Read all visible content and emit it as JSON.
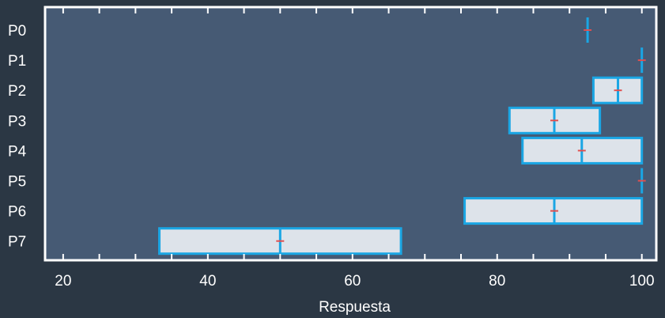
{
  "chart_data": {
    "type": "box",
    "orientation": "horizontal",
    "title": "",
    "xlabel": "Respuesta",
    "ylabel": "",
    "xlim": [
      17.5,
      102
    ],
    "x_ticks": [
      20,
      40,
      60,
      80,
      100
    ],
    "x_minor_ticks": [
      20,
      25,
      30,
      35,
      40,
      45,
      50,
      55,
      60,
      65,
      70,
      75,
      80,
      85,
      90,
      95,
      100
    ],
    "grid": false,
    "categories": [
      "P0",
      "P1",
      "P2",
      "P3",
      "P4",
      "P5",
      "P6",
      "P7"
    ],
    "boxes": [
      {
        "label": "P0",
        "q1": 92.5,
        "median": 92.5,
        "q3": 92.5,
        "mean": 92.5
      },
      {
        "label": "P1",
        "q1": 100,
        "median": 100,
        "q3": 100,
        "mean": 100
      },
      {
        "label": "P2",
        "q1": 93.3,
        "median": 96.7,
        "q3": 100,
        "mean": 96.7
      },
      {
        "label": "P3",
        "q1": 81.7,
        "median": 87.9,
        "q3": 94.2,
        "mean": 87.9
      },
      {
        "label": "P4",
        "q1": 83.5,
        "median": 91.7,
        "q3": 100,
        "mean": 91.7
      },
      {
        "label": "P5",
        "q1": 100,
        "median": 100,
        "q3": 100,
        "mean": 100
      },
      {
        "label": "P6",
        "q1": 75.5,
        "median": 87.9,
        "q3": 100,
        "mean": 87.9
      },
      {
        "label": "P7",
        "q1": 33.3,
        "median": 50,
        "q3": 66.7,
        "mean": 50
      }
    ],
    "colors": {
      "background": "#2b3744",
      "plot_area": "#465a74",
      "axis_frame": "#ffffff",
      "box_fill": "#dde3ea",
      "box_edge": "#1aa6e4",
      "mean_marker": "#e05050",
      "text": "#ffffff"
    }
  }
}
